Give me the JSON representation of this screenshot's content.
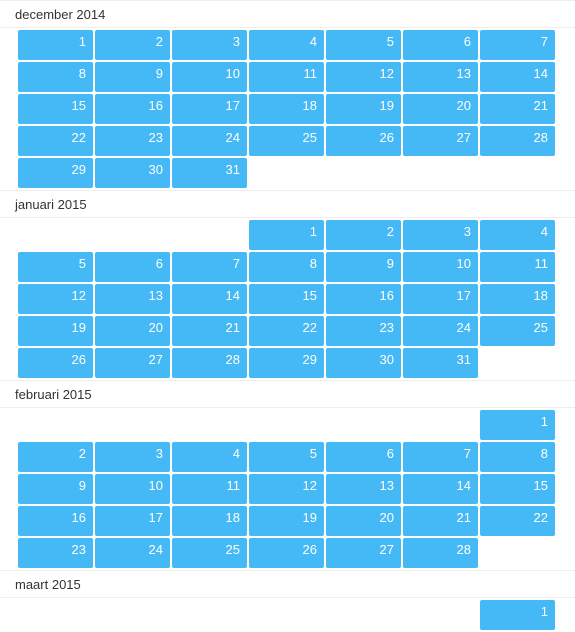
{
  "months": [
    {
      "title": "december 2014",
      "offset": 0,
      "days": 31
    },
    {
      "title": "januari 2015",
      "offset": 3,
      "days": 31
    },
    {
      "title": "februari 2015",
      "offset": 6,
      "days": 28
    },
    {
      "title": "maart 2015",
      "offset": 6,
      "days": 1
    }
  ],
  "colors": {
    "accent": "#45b9f6",
    "text": "#333333",
    "day_text": "#ffffff"
  }
}
